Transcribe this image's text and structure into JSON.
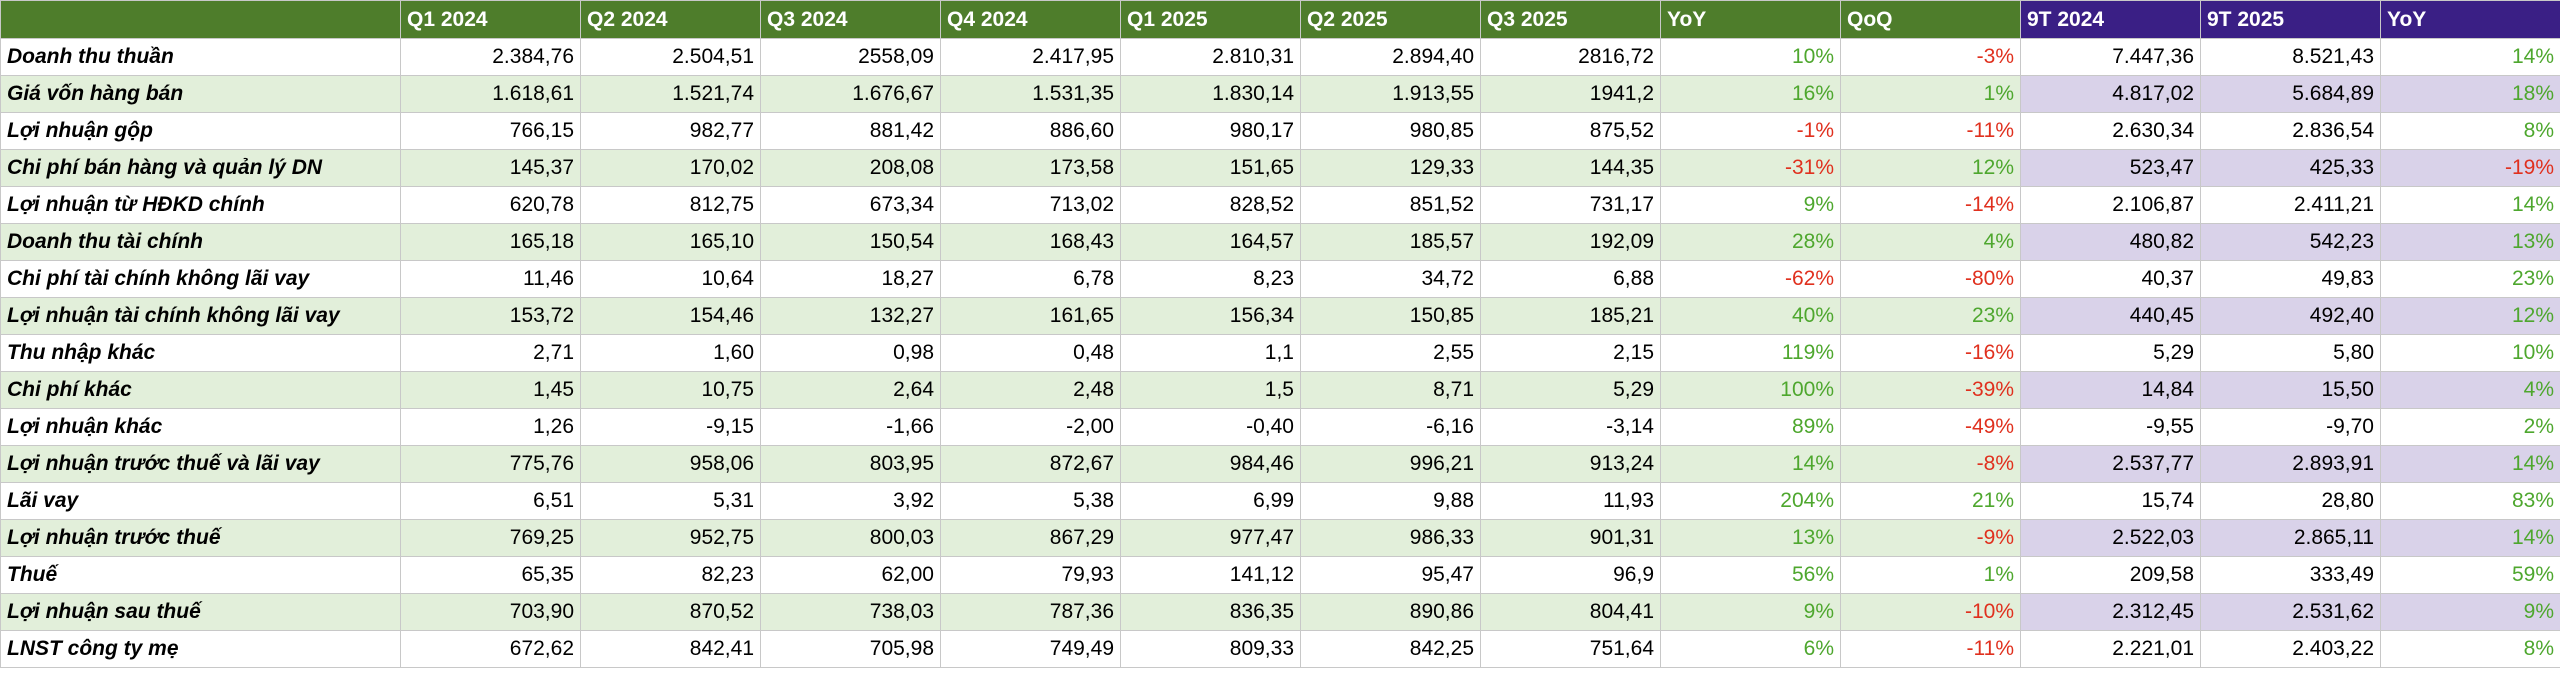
{
  "table": {
    "header": [
      "Q1 2024",
      "Q2 2024",
      "Q3 2024",
      "Q4 2024",
      "Q1 2025",
      "Q2 2025",
      "Q3 2025",
      "YoY",
      "QoQ",
      "9T 2024",
      "9T 2025",
      "YoY"
    ],
    "rows": [
      {
        "label": "Doanh thu thuần",
        "cells": [
          "2.384,76",
          "2.504,51",
          "2558,09",
          "2.417,95",
          "2.810,31",
          "2.894,40",
          "2816,72",
          "10%",
          "-3%",
          "7.447,36",
          "8.521,43",
          "14%"
        ]
      },
      {
        "label": "Giá vốn hàng bán",
        "cells": [
          "1.618,61",
          "1.521,74",
          "1.676,67",
          "1.531,35",
          "1.830,14",
          "1.913,55",
          "1941,2",
          "16%",
          "1%",
          "4.817,02",
          "5.684,89",
          "18%"
        ]
      },
      {
        "label": "Lợi nhuận gộp",
        "cells": [
          "766,15",
          "982,77",
          "881,42",
          "886,60",
          "980,17",
          "980,85",
          "875,52",
          "-1%",
          "-11%",
          "2.630,34",
          "2.836,54",
          "8%"
        ]
      },
      {
        "label": "Chi phí bán hàng và quản lý DN",
        "cells": [
          "145,37",
          "170,02",
          "208,08",
          "173,58",
          "151,65",
          "129,33",
          "144,35",
          "-31%",
          "12%",
          "523,47",
          "425,33",
          "-19%"
        ]
      },
      {
        "label": "Lợi nhuận từ HĐKD chính",
        "cells": [
          "620,78",
          "812,75",
          "673,34",
          "713,02",
          "828,52",
          "851,52",
          "731,17",
          "9%",
          "-14%",
          "2.106,87",
          "2.411,21",
          "14%"
        ]
      },
      {
        "label": "Doanh thu tài chính",
        "cells": [
          "165,18",
          "165,10",
          "150,54",
          "168,43",
          "164,57",
          "185,57",
          "192,09",
          "28%",
          "4%",
          "480,82",
          "542,23",
          "13%"
        ]
      },
      {
        "label": "Chi phí tài chính không lãi vay",
        "cells": [
          "11,46",
          "10,64",
          "18,27",
          "6,78",
          "8,23",
          "34,72",
          "6,88",
          "-62%",
          "-80%",
          "40,37",
          "49,83",
          "23%"
        ]
      },
      {
        "label": "Lợi nhuận tài chính không lãi vay",
        "cells": [
          "153,72",
          "154,46",
          "132,27",
          "161,65",
          "156,34",
          "150,85",
          "185,21",
          "40%",
          "23%",
          "440,45",
          "492,40",
          "12%"
        ]
      },
      {
        "label": "Thu nhập khác",
        "cells": [
          "2,71",
          "1,60",
          "0,98",
          "0,48",
          "1,1",
          "2,55",
          "2,15",
          "119%",
          "-16%",
          "5,29",
          "5,80",
          "10%"
        ]
      },
      {
        "label": "Chi phí khác",
        "cells": [
          "1,45",
          "10,75",
          "2,64",
          "2,48",
          "1,5",
          "8,71",
          "5,29",
          "100%",
          "-39%",
          "14,84",
          "15,50",
          "4%"
        ]
      },
      {
        "label": "Lợi nhuận khác",
        "cells": [
          "1,26",
          "-9,15",
          "-1,66",
          "-2,00",
          "-0,40",
          "-6,16",
          "-3,14",
          "89%",
          "-49%",
          "-9,55",
          "-9,70",
          "2%"
        ]
      },
      {
        "label": "Lợi nhuận trước thuế và lãi vay",
        "cells": [
          "775,76",
          "958,06",
          "803,95",
          "872,67",
          "984,46",
          "996,21",
          "913,24",
          "14%",
          "-8%",
          "2.537,77",
          "2.893,91",
          "14%"
        ]
      },
      {
        "label": "Lãi vay",
        "cells": [
          "6,51",
          "5,31",
          "3,92",
          "5,38",
          "6,99",
          "9,88",
          "11,93",
          "204%",
          "21%",
          "15,74",
          "28,80",
          "83%"
        ]
      },
      {
        "label": "Lợi nhuận trước thuế",
        "cells": [
          "769,25",
          "952,75",
          "800,03",
          "867,29",
          "977,47",
          "986,33",
          "901,31",
          "13%",
          "-9%",
          "2.522,03",
          "2.865,11",
          "14%"
        ]
      },
      {
        "label": "Thuế",
        "cells": [
          "65,35",
          "82,23",
          "62,00",
          "79,93",
          "141,12",
          "95,47",
          "96,9",
          "56%",
          "1%",
          "209,58",
          "333,49",
          "59%"
        ]
      },
      {
        "label": "Lợi nhuận sau thuế",
        "cells": [
          "703,90",
          "870,52",
          "738,03",
          "787,36",
          "836,35",
          "890,86",
          "804,41",
          "9%",
          "-10%",
          "2.312,45",
          "2.531,62",
          "9%"
        ]
      },
      {
        "label": "LNST công ty mẹ",
        "cells": [
          "672,62",
          "842,41",
          "705,98",
          "749,49",
          "809,33",
          "842,25",
          "751,64",
          "6%",
          "-11%",
          "2.221,01",
          "2.403,22",
          "8%"
        ]
      }
    ]
  }
}
